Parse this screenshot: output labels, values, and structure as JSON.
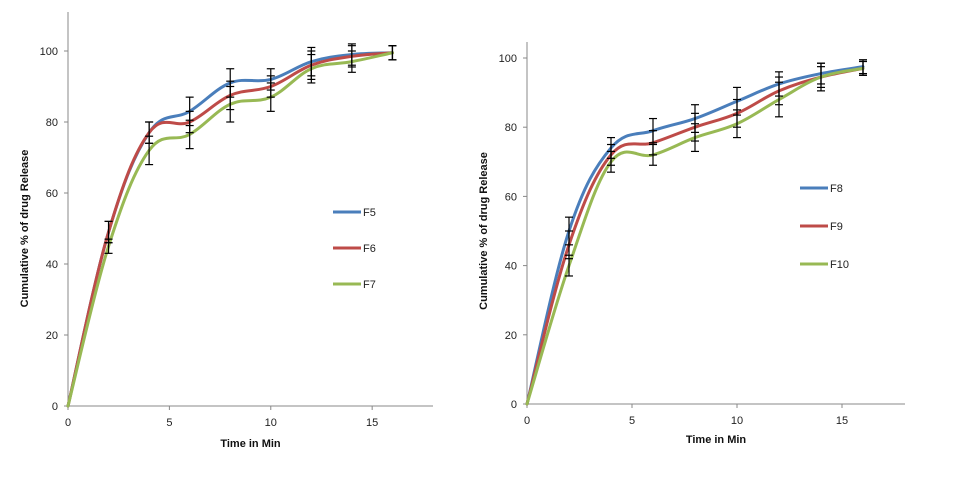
{
  "chart_data": [
    {
      "type": "line",
      "title": "",
      "xlabel": "Time in Min",
      "ylabel": "Cumulative % of drug Release",
      "xlim": [
        0,
        18
      ],
      "ylim": [
        0,
        100
      ],
      "xticks": [
        0,
        5,
        10,
        15
      ],
      "yticks": [
        0,
        20,
        40,
        60,
        80,
        100
      ],
      "grid": false,
      "legend_position": "right-middle",
      "x": [
        0,
        2,
        4,
        6,
        8,
        10,
        12,
        14,
        16
      ],
      "series": [
        {
          "name": "F5",
          "color": "#4a7ebb",
          "values": [
            0,
            49,
            77,
            83,
            91,
            92,
            97,
            99,
            99.5
          ],
          "errors": [
            0,
            3,
            3,
            4,
            4,
            3,
            4,
            3,
            2
          ]
        },
        {
          "name": "F6",
          "color": "#be4b48",
          "values": [
            0,
            49,
            77,
            80,
            87.5,
            90,
            96,
            98.5,
            99.5
          ],
          "errors": [
            0,
            3,
            3,
            3,
            4,
            3,
            4,
            3,
            2
          ]
        },
        {
          "name": "F7",
          "color": "#98b954",
          "values": [
            0,
            45,
            72,
            76.5,
            85,
            87,
            95,
            97,
            99.5
          ],
          "errors": [
            0,
            2,
            4,
            4,
            5,
            4,
            4,
            3,
            2
          ]
        }
      ]
    },
    {
      "type": "line",
      "title": "",
      "xlabel": "Time in Min",
      "ylabel": "Cumulative % of drug Release",
      "xlim": [
        0,
        18
      ],
      "ylim": [
        0,
        100
      ],
      "xticks": [
        0,
        5,
        10,
        15
      ],
      "yticks": [
        0,
        20,
        40,
        60,
        80,
        100
      ],
      "grid": false,
      "legend_position": "right-middle",
      "x": [
        0,
        2,
        4,
        6,
        8,
        10,
        12,
        14,
        16
      ],
      "series": [
        {
          "name": "F8",
          "color": "#4a7ebb",
          "values": [
            0,
            50,
            74,
            79,
            82.5,
            87.5,
            92.5,
            95.5,
            97.5
          ],
          "errors": [
            0,
            4,
            3,
            3.5,
            4,
            4,
            3.5,
            3,
            2
          ]
        },
        {
          "name": "F9",
          "color": "#be4b48",
          "values": [
            0,
            46,
            72,
            75.5,
            80,
            84,
            90.5,
            94.5,
            97
          ],
          "errors": [
            0,
            4,
            3,
            3.5,
            4,
            4,
            4,
            3,
            2
          ]
        },
        {
          "name": "F10",
          "color": "#98b954",
          "values": [
            0,
            40,
            70,
            72,
            77,
            81,
            88,
            94.5,
            97
          ],
          "errors": [
            0,
            3,
            3,
            3,
            4,
            4,
            5,
            4,
            2
          ]
        }
      ]
    }
  ]
}
